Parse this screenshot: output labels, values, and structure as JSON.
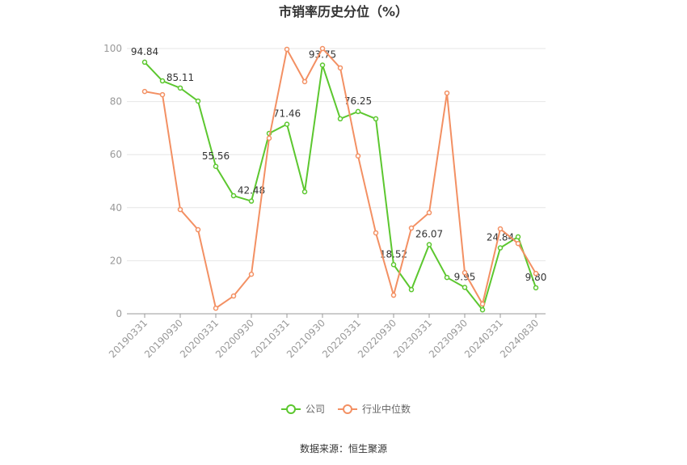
{
  "chart_data": {
    "type": "line",
    "title": "市销率历史分位（%）",
    "categories": [
      "20190331",
      null,
      "20190930",
      null,
      "20200331",
      null,
      "20200930",
      null,
      "20210331",
      null,
      "20210930",
      null,
      "20220331",
      null,
      "20220930",
      null,
      "20230331",
      null,
      "20230930",
      null,
      "20240331",
      null,
      "20240830"
    ],
    "series": [
      {
        "name": "公司",
        "color": "#5cc72f",
        "values": [
          94.84,
          87.8,
          85.11,
          80.2,
          55.56,
          44.5,
          42.48,
          68.0,
          71.46,
          46.0,
          93.75,
          73.5,
          76.25,
          73.5,
          18.52,
          9.1,
          26.07,
          13.7,
          9.95,
          1.5,
          24.84,
          29.0,
          9.8
        ],
        "value_labels": [
          "94.84",
          null,
          "85.11",
          null,
          "55.56",
          null,
          "42.48",
          null,
          "71.46",
          null,
          "93.75",
          null,
          "76.25",
          null,
          "18.52",
          null,
          "26.07",
          null,
          "9.95",
          null,
          "24.84",
          null,
          "9.80"
        ]
      },
      {
        "name": "行业中位数",
        "color": "#f39063",
        "values": [
          83.8,
          82.6,
          39.3,
          31.7,
          2.1,
          6.7,
          14.9,
          66.2,
          99.7,
          87.5,
          100,
          92.7,
          59.5,
          30.5,
          7.0,
          32.3,
          38.1,
          83.2,
          15.5,
          3.7,
          32.0,
          26.5,
          15.2
        ]
      }
    ],
    "ylim": [
      0,
      100
    ],
    "yticks": [
      0,
      20,
      40,
      60,
      80,
      100
    ],
    "grid": true,
    "legend": "bottom",
    "source": "数据来源：恒生聚源"
  }
}
